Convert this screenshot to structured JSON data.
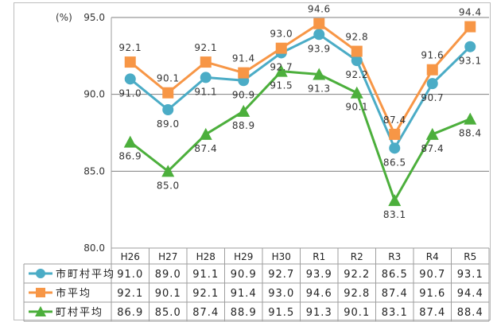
{
  "chart_data": {
    "type": "line",
    "unit_label": "(%)",
    "categories": [
      "H26",
      "H27",
      "H28",
      "H29",
      "H30",
      "R1",
      "R2",
      "R3",
      "R4",
      "R5"
    ],
    "ylim": [
      80.0,
      95.0
    ],
    "yticks": [
      "80.0",
      "85.0",
      "90.0",
      "95.0"
    ],
    "grid": true,
    "legend": "data-table",
    "series": [
      {
        "name": "市町村平均",
        "color": "#4bacc6",
        "marker": "circle",
        "values": [
          91.0,
          89.0,
          91.1,
          90.9,
          92.7,
          93.9,
          92.2,
          86.5,
          90.7,
          93.1
        ],
        "labels": [
          "91.0",
          "89.0",
          "91.1",
          "90.9",
          "92.7",
          "93.9",
          "92.2",
          "86.5",
          "90.7",
          "93.1"
        ]
      },
      {
        "name": "市平均",
        "color": "#f79646",
        "marker": "square",
        "values": [
          92.1,
          90.1,
          92.1,
          91.4,
          93.0,
          94.6,
          92.8,
          87.4,
          91.6,
          94.4
        ],
        "labels": [
          "92.1",
          "90.1",
          "92.1",
          "91.4",
          "93.0",
          "94.6",
          "92.8",
          "87.4",
          "91.6",
          "94.4"
        ]
      },
      {
        "name": "町村平均",
        "color": "#4caf3c",
        "marker": "triangle",
        "values": [
          86.9,
          85.0,
          87.4,
          88.9,
          91.5,
          91.3,
          90.1,
          83.1,
          87.4,
          88.4
        ],
        "labels": [
          "86.9",
          "85.0",
          "87.4",
          "88.9",
          "91.5",
          "91.3",
          "90.1",
          "83.1",
          "87.4",
          "88.4"
        ]
      }
    ]
  }
}
